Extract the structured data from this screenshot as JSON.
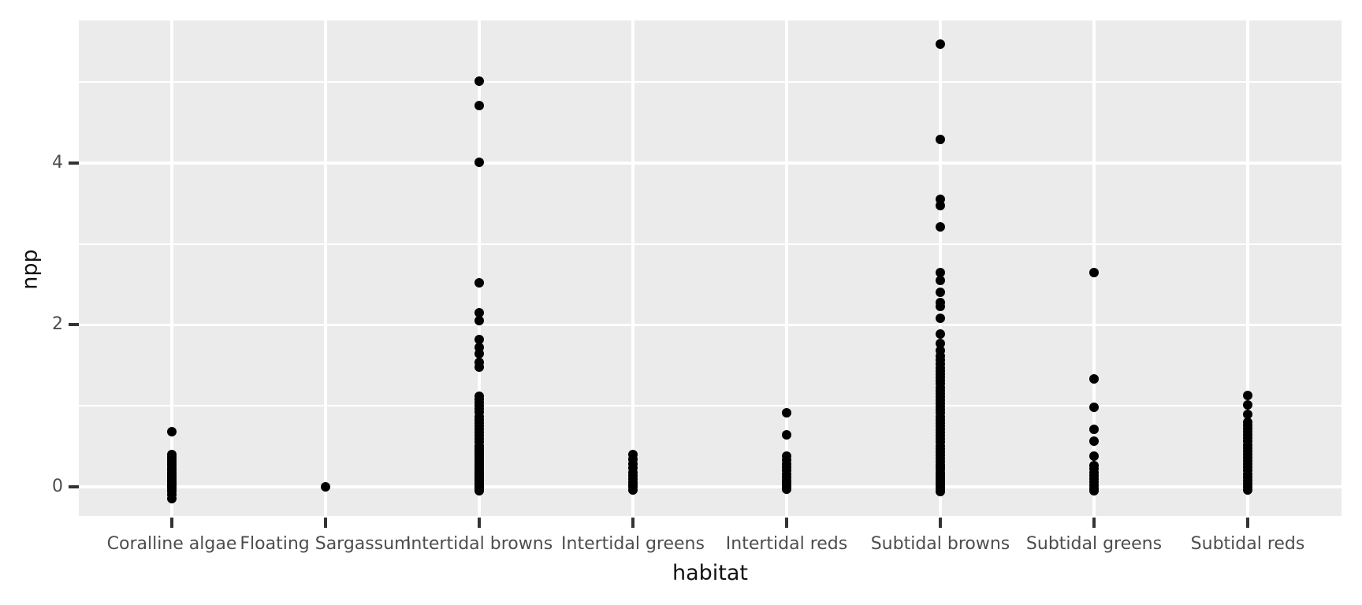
{
  "chart": {
    "xlabel": "habitat",
    "ylabel": "npp"
  },
  "chart_data": {
    "type": "scatter",
    "subtype": "strip-plot-ggplot-default-theme",
    "title": "",
    "xlabel": "habitat",
    "ylabel": "npp",
    "legend": "none",
    "grid": true,
    "point_color": "#000000",
    "categories": [
      "Coralline algae",
      "Floating Sargassum",
      "Intertidal browns",
      "Intertidal greens",
      "Intertidal reds",
      "Subtidal browns",
      "Subtidal greens",
      "Subtidal reds"
    ],
    "y_axis": {
      "ticks": [
        0,
        2,
        4
      ],
      "tick_labels": [
        "0",
        "2",
        "4"
      ],
      "minor_ticks": [
        1,
        3,
        5
      ],
      "range": [
        -0.36,
        5.76
      ]
    },
    "series": [
      {
        "name": "Coralline algae",
        "values": [
          0.68,
          0.4,
          0.37,
          0.34,
          0.31,
          0.28,
          0.25,
          0.22,
          0.2,
          0.18,
          0.16,
          0.14,
          0.12,
          0.1,
          0.08,
          0.06,
          0.04,
          0.02,
          0.0,
          -0.03,
          -0.06,
          -0.1,
          -0.15
        ]
      },
      {
        "name": "Floating Sargassum",
        "values": [
          0.0
        ]
      },
      {
        "name": "Intertidal browns",
        "values": [
          5.01,
          4.71,
          4.01,
          2.52,
          2.15,
          2.05,
          1.82,
          1.72,
          1.64,
          1.54,
          1.48,
          1.12,
          1.08,
          1.04,
          1.0,
          0.96,
          0.92,
          0.87,
          0.83,
          0.79,
          0.75,
          0.71,
          0.67,
          0.63,
          0.59,
          0.55,
          0.51,
          0.48,
          0.45,
          0.42,
          0.39,
          0.36,
          0.33,
          0.3,
          0.27,
          0.24,
          0.21,
          0.19,
          0.17,
          0.15,
          0.13,
          0.11,
          0.09,
          0.07,
          0.05,
          0.03,
          0.01,
          -0.01,
          -0.03,
          -0.05
        ]
      },
      {
        "name": "Intertidal greens",
        "values": [
          0.4,
          0.34,
          0.28,
          0.23,
          0.18,
          0.14,
          0.1,
          0.06,
          0.03,
          0.0,
          -0.04
        ]
      },
      {
        "name": "Intertidal reds",
        "values": [
          0.91,
          0.64,
          0.38,
          0.33,
          0.28,
          0.24,
          0.2,
          0.16,
          0.12,
          0.08,
          0.05,
          0.02,
          0.0,
          -0.03
        ]
      },
      {
        "name": "Subtidal browns",
        "values": [
          5.47,
          4.29,
          3.55,
          3.47,
          3.21,
          2.65,
          2.55,
          2.4,
          2.28,
          2.23,
          2.08,
          1.89,
          1.77,
          1.68,
          1.62,
          1.57,
          1.52,
          1.47,
          1.43,
          1.39,
          1.35,
          1.31,
          1.27,
          1.23,
          1.19,
          1.15,
          1.11,
          1.07,
          1.03,
          0.99,
          0.95,
          0.91,
          0.87,
          0.83,
          0.79,
          0.75,
          0.71,
          0.67,
          0.63,
          0.59,
          0.55,
          0.51,
          0.47,
          0.43,
          0.39,
          0.35,
          0.31,
          0.27,
          0.24,
          0.21,
          0.18,
          0.15,
          0.12,
          0.09,
          0.06,
          0.03,
          0.0,
          -0.03,
          -0.06
        ]
      },
      {
        "name": "Subtidal greens",
        "values": [
          2.65,
          1.33,
          0.98,
          0.71,
          0.56,
          0.38,
          0.26,
          0.22,
          0.18,
          0.14,
          0.1,
          0.06,
          0.02,
          -0.02,
          -0.05
        ]
      },
      {
        "name": "Subtidal reds",
        "values": [
          1.13,
          1.01,
          0.9,
          0.8,
          0.76,
          0.72,
          0.68,
          0.64,
          0.6,
          0.56,
          0.52,
          0.48,
          0.44,
          0.4,
          0.36,
          0.32,
          0.28,
          0.24,
          0.2,
          0.16,
          0.12,
          0.08,
          0.04,
          0.0,
          -0.04
        ]
      }
    ],
    "style": {
      "panel_background": "#EBEBEB",
      "gridline_color": "#FFFFFF",
      "tick_color": "#333333",
      "tick_label_color": "#4D4D4D",
      "axis_title_color": "#111111",
      "page_background": "#FFFFFF"
    }
  }
}
